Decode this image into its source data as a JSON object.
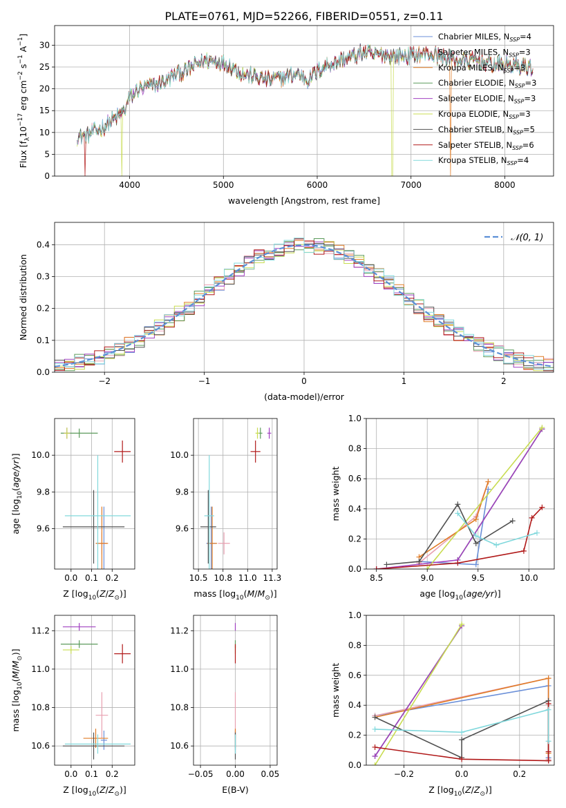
{
  "figure_title": "PLATE=0761, MJD=52266, FIBERID=0551, z=0.11",
  "colors": {
    "Chabrier MILES": "#6a8fd8",
    "Salpeter MILES": "#e8a0b0",
    "Kroupa MILES": "#e07b25",
    "Chabrier ELODIE": "#5a9a5a",
    "Salpeter ELODIE": "#a040c0",
    "Kroupa ELODIE": "#c8dc50",
    "Chabrier STELIB": "#505050",
    "Salpeter STELIB": "#b01818",
    "Kroupa STELIB": "#80d8dc",
    "gaussian": "#5b8fd6"
  },
  "chart_data": [
    {
      "id": "spectrum",
      "type": "line",
      "title": "PLATE=0761, MJD=52266, FIBERID=0551, z=0.11",
      "xlabel": "wavelength [Angstrom, rest frame]",
      "ylabel": "Flux [f_λ 10^-17 erg cm^-2 s^-1 A^-1]",
      "xlim": [
        3200,
        8520
      ],
      "ylim": [
        0,
        34.5
      ],
      "xticks": [
        4000,
        5000,
        6000,
        7000,
        8000
      ],
      "yticks": [
        0,
        5,
        10,
        15,
        20,
        25,
        30
      ],
      "legend_position": "upper right",
      "legend": [
        {
          "series": "Chabrier MILES",
          "label": "Chabrier MILES, N",
          "sub": "SSP",
          "tail": "=4"
        },
        {
          "series": "Salpeter MILES",
          "label": "Salpeter MILES, N",
          "sub": "SSP",
          "tail": "=3"
        },
        {
          "series": "Kroupa MILES",
          "label": "Kroupa MILES, N",
          "sub": "SSP",
          "tail": "=3"
        },
        {
          "series": "Chabrier ELODIE",
          "label": "Chabrier ELODIE, N",
          "sub": "SSP",
          "tail": "=3"
        },
        {
          "series": "Salpeter ELODIE",
          "label": "Salpeter ELODIE, N",
          "sub": "SSP",
          "tail": "=3"
        },
        {
          "series": "Kroupa ELODIE",
          "label": "Kroupa ELODIE, N",
          "sub": "SSP",
          "tail": "=3"
        },
        {
          "series": "Chabrier STELIB",
          "label": "Chabrier STELIB, N",
          "sub": "SSP",
          "tail": "=5"
        },
        {
          "series": "Salpeter STELIB",
          "label": "Salpeter STELIB, N",
          "sub": "SSP",
          "tail": "=6"
        },
        {
          "series": "Kroupa STELIB",
          "label": "Kroupa STELIB, N",
          "sub": "SSP",
          "tail": "=4"
        }
      ],
      "continuum": {
        "x": [
          3440,
          3550,
          3700,
          3800,
          3900,
          3950,
          4000,
          4100,
          4200,
          4300,
          4400,
          4500,
          4600,
          4700,
          4800,
          4900,
          5000,
          5100,
          5200,
          5300,
          5400,
          5500,
          5600,
          5700,
          5800,
          5900,
          6000,
          6100,
          6200,
          6300,
          6400,
          6500,
          6600,
          6700,
          6800,
          6900,
          7000,
          7100,
          7200,
          7300,
          7400,
          7500,
          7600,
          7700,
          7800,
          7900,
          8000,
          8100,
          8200,
          8300
        ],
        "y": [
          9.0,
          9.5,
          11.0,
          12.5,
          14.0,
          15.0,
          18.0,
          20.0,
          20.5,
          21.0,
          22.0,
          23.5,
          24.0,
          25.5,
          26.5,
          26.5,
          26.0,
          25.0,
          23.5,
          23.0,
          22.5,
          22.0,
          22.5,
          23.0,
          23.5,
          22.0,
          24.0,
          25.5,
          26.0,
          27.0,
          27.5,
          28.5,
          27.5,
          28.0,
          27.5,
          27.5,
          27.5,
          28.0,
          28.0,
          27.5,
          27.0,
          26.5,
          26.5,
          26.5,
          26.0,
          25.5,
          25.5,
          25.5,
          25.0,
          25.0
        ]
      },
      "dropouts": [
        {
          "series": "Salpeter STELIB",
          "x": 3525
        },
        {
          "series": "Kroupa ELODIE",
          "x": 3920
        },
        {
          "series": "Kroupa ELODIE",
          "x": 6800
        },
        {
          "series": "Kroupa MILES",
          "x": 7420
        }
      ]
    },
    {
      "id": "residuals",
      "type": "histogram",
      "xlabel": "(data-model)/error",
      "ylabel": "Normed distribution",
      "xlim": [
        -2.5,
        2.5
      ],
      "ylim": [
        0,
        0.47
      ],
      "xticks": [
        -2,
        -1,
        0,
        1,
        2
      ],
      "yticks": [
        0.0,
        0.1,
        0.2,
        0.3,
        0.4
      ],
      "bin_width": 0.1,
      "legend_position": "upper right",
      "legend": [
        {
          "series": "gaussian",
          "label": "𝒩(0, 1)"
        }
      ],
      "gaussian": {
        "mean": 0,
        "sigma": 1,
        "style": "dashed"
      }
    },
    {
      "id": "age_vs_z",
      "type": "errorbar",
      "xlabel": "Z [log10(Z/Z⊙)]",
      "ylabel": "age [log10(age/yr)]",
      "xlim": [
        -0.08,
        0.31
      ],
      "ylim": [
        9.38,
        10.2
      ],
      "xticks": [
        0.0,
        0.1,
        0.2
      ],
      "yticks": [
        9.6,
        9.8,
        10.0
      ],
      "points": [
        {
          "series": "Chabrier MILES",
          "x": 0.16,
          "xerr": 0.015,
          "y": 9.52,
          "yerr": 0.2
        },
        {
          "series": "Salpeter MILES",
          "x": 0.15,
          "xerr": 0.025,
          "y": 9.52,
          "yerr": 0.06
        },
        {
          "series": "Kroupa MILES",
          "x": 0.15,
          "xerr": 0.03,
          "y": 9.52,
          "yerr": 0.2
        },
        {
          "series": "Chabrier ELODIE",
          "x": 0.04,
          "xerr": 0.09,
          "y": 10.12,
          "yerr": 0.025
        },
        {
          "series": "Salpeter ELODIE",
          "x": -0.02,
          "xerr": 0.015,
          "y": 10.12,
          "yerr": 0.03
        },
        {
          "series": "Kroupa ELODIE",
          "x": -0.02,
          "xerr": 0.015,
          "y": 10.12,
          "yerr": 0.03
        },
        {
          "series": "Chabrier STELIB",
          "x": 0.11,
          "xerr": 0.15,
          "y": 9.61,
          "yerr": 0.2
        },
        {
          "series": "Salpeter STELIB",
          "x": 0.25,
          "xerr": 0.04,
          "y": 10.02,
          "yerr": 0.06
        },
        {
          "series": "Kroupa STELIB",
          "x": 0.13,
          "xerr": 0.16,
          "y": 9.67,
          "yerr": 0.33
        }
      ]
    },
    {
      "id": "age_vs_mass",
      "type": "errorbar",
      "xlabel": "mass [log10(M/M⊙)]",
      "xlim": [
        10.45,
        11.3
      ],
      "ylim": [
        9.38,
        10.2
      ],
      "xticks": [
        10.5,
        10.75,
        11.0,
        11.25
      ],
      "yticks": [
        9.6,
        9.8,
        10.0
      ],
      "points": [
        {
          "series": "Chabrier MILES",
          "x": 10.63,
          "xerr": 0.05,
          "y": 9.52,
          "yerr": 0.2
        },
        {
          "series": "Salpeter MILES",
          "x": 10.76,
          "xerr": 0.06,
          "y": 9.52,
          "yerr": 0.06
        },
        {
          "series": "Kroupa MILES",
          "x": 10.64,
          "xerr": 0.05,
          "y": 9.52,
          "yerr": 0.2
        },
        {
          "series": "Chabrier ELODIE",
          "x": 11.13,
          "xerr": 0.02,
          "y": 10.12,
          "yerr": 0.03
        },
        {
          "series": "Salpeter ELODIE",
          "x": 11.22,
          "xerr": 0.02,
          "y": 10.12,
          "yerr": 0.03
        },
        {
          "series": "Kroupa ELODIE",
          "x": 11.1,
          "xerr": 0.02,
          "y": 10.12,
          "yerr": 0.03
        },
        {
          "series": "Chabrier STELIB",
          "x": 10.6,
          "xerr": 0.08,
          "y": 9.61,
          "yerr": 0.2
        },
        {
          "series": "Salpeter STELIB",
          "x": 11.08,
          "xerr": 0.05,
          "y": 10.02,
          "yerr": 0.06
        },
        {
          "series": "Kroupa STELIB",
          "x": 10.61,
          "xerr": 0.05,
          "y": 9.67,
          "yerr": 0.33
        }
      ]
    },
    {
      "id": "weight_vs_age",
      "type": "line",
      "xlabel": "age [log10(age/yr)]",
      "ylabel": "mass weight",
      "xlim": [
        8.4,
        10.25
      ],
      "ylim": [
        0,
        1
      ],
      "xticks": [
        8.5,
        9.0,
        9.5,
        10.0
      ],
      "yticks": [
        0.0,
        0.2,
        0.4,
        0.6,
        0.8,
        1.0
      ],
      "series": [
        {
          "name": "Chabrier MILES",
          "x": [
            8.92,
            9.48,
            9.6
          ],
          "y": [
            0.05,
            0.03,
            0.53
          ]
        },
        {
          "name": "Salpeter MILES",
          "x": [
            8.92,
            9.48,
            9.6
          ],
          "y": [
            0.04,
            0.35,
            0.58
          ]
        },
        {
          "name": "Kroupa MILES",
          "x": [
            8.92,
            9.48,
            9.6
          ],
          "y": [
            0.08,
            0.33,
            0.58
          ]
        },
        {
          "name": "Chabrier ELODIE",
          "x": [
            9.3,
            10.13
          ],
          "y": [
            0.06,
            0.93
          ]
        },
        {
          "name": "Salpeter ELODIE",
          "x": [
            8.5,
            9.3,
            10.13
          ],
          "y": [
            0.0,
            0.06,
            0.93
          ]
        },
        {
          "name": "Kroupa ELODIE",
          "x": [
            9.0,
            10.13
          ],
          "y": [
            0.0,
            0.94
          ]
        },
        {
          "name": "Chabrier STELIB",
          "x": [
            8.6,
            8.92,
            9.3,
            9.48,
            9.84
          ],
          "y": [
            0.03,
            0.05,
            0.43,
            0.17,
            0.32
          ]
        },
        {
          "name": "Salpeter STELIB",
          "x": [
            8.5,
            9.3,
            9.95,
            10.03,
            10.13
          ],
          "y": [
            0.0,
            0.04,
            0.12,
            0.34,
            0.41
          ]
        },
        {
          "name": "Kroupa STELIB",
          "x": [
            9.3,
            9.48,
            9.68,
            10.08
          ],
          "y": [
            0.37,
            0.22,
            0.16,
            0.24
          ]
        }
      ]
    },
    {
      "id": "mass_vs_z",
      "type": "errorbar",
      "xlabel": "Z [log10(Z/Z⊙)]",
      "ylabel": "mass [log10(M/M⊙)]",
      "xlim": [
        -0.08,
        0.31
      ],
      "ylim": [
        10.5,
        11.28
      ],
      "xticks": [
        0.0,
        0.1,
        0.2
      ],
      "yticks": [
        10.6,
        10.8,
        11.0,
        11.2
      ],
      "points": [
        {
          "series": "Chabrier MILES",
          "x": 0.16,
          "xerr": 0.015,
          "y": 10.63,
          "yerr": 0.05
        },
        {
          "series": "Salpeter MILES",
          "x": 0.15,
          "xerr": 0.03,
          "y": 10.76,
          "yerr": 0.12
        },
        {
          "series": "Kroupa MILES",
          "x": 0.12,
          "xerr": 0.06,
          "y": 10.64,
          "yerr": 0.05
        },
        {
          "series": "Chabrier ELODIE",
          "x": 0.04,
          "xerr": 0.09,
          "y": 11.13,
          "yerr": 0.02
        },
        {
          "series": "Salpeter ELODIE",
          "x": 0.04,
          "xerr": 0.08,
          "y": 11.22,
          "yerr": 0.02
        },
        {
          "series": "Kroupa ELODIE",
          "x": 0.0,
          "xerr": 0.04,
          "y": 11.1,
          "yerr": 0.02
        },
        {
          "series": "Chabrier STELIB",
          "x": 0.11,
          "xerr": 0.15,
          "y": 10.6,
          "yerr": 0.07
        },
        {
          "series": "Salpeter STELIB",
          "x": 0.25,
          "xerr": 0.04,
          "y": 11.08,
          "yerr": 0.05
        },
        {
          "series": "Kroupa STELIB",
          "x": 0.13,
          "xerr": 0.16,
          "y": 10.61,
          "yerr": 0.05
        }
      ]
    },
    {
      "id": "mass_vs_ebv",
      "type": "errorbar",
      "xlabel": "E(B-V)",
      "xlim": [
        -0.06,
        0.06
      ],
      "ylim": [
        10.5,
        11.28
      ],
      "xticks": [
        -0.05,
        0.0,
        0.05
      ],
      "yticks": [
        10.6,
        10.8,
        11.0,
        11.2
      ],
      "points": [
        {
          "series": "Chabrier MILES",
          "x": 0.0,
          "xerr": 0.0,
          "y": 10.63,
          "yerr": 0.05
        },
        {
          "series": "Salpeter MILES",
          "x": 0.0,
          "xerr": 0.0,
          "y": 10.76,
          "yerr": 0.12
        },
        {
          "series": "Kroupa MILES",
          "x": 0.0,
          "xerr": 0.0,
          "y": 10.64,
          "yerr": 0.05
        },
        {
          "series": "Chabrier ELODIE",
          "x": 0.0,
          "xerr": 0.0,
          "y": 11.13,
          "yerr": 0.02
        },
        {
          "series": "Salpeter ELODIE",
          "x": 0.0,
          "xerr": 0.0,
          "y": 11.22,
          "yerr": 0.02
        },
        {
          "series": "Kroupa ELODIE",
          "x": 0.0,
          "xerr": 0.0,
          "y": 11.1,
          "yerr": 0.02
        },
        {
          "series": "Chabrier STELIB",
          "x": 0.0,
          "xerr": 0.0,
          "y": 10.6,
          "yerr": 0.07
        },
        {
          "series": "Salpeter STELIB",
          "x": 0.0,
          "xerr": 0.0,
          "y": 11.08,
          "yerr": 0.05
        },
        {
          "series": "Kroupa STELIB",
          "x": 0.0,
          "xerr": 0.0,
          "y": 10.61,
          "yerr": 0.05
        }
      ]
    },
    {
      "id": "weight_vs_z",
      "type": "line",
      "xlabel": "Z [log10(Z/Z⊙)]",
      "ylabel": "mass weight",
      "xlim": [
        -0.33,
        0.32
      ],
      "ylim": [
        0,
        1
      ],
      "xticks": [
        -0.2,
        0.0,
        0.2
      ],
      "yticks": [
        0.0,
        0.2,
        0.4,
        0.6,
        0.8,
        1.0
      ],
      "series": [
        {
          "name": "Chabrier MILES",
          "x": [
            -0.3,
            0.3,
            0.3
          ],
          "y": [
            0.33,
            0.53,
            0.05
          ]
        },
        {
          "name": "Salpeter MILES",
          "x": [
            -0.3,
            0.3,
            0.3
          ],
          "y": [
            0.33,
            0.58,
            0.04
          ]
        },
        {
          "name": "Kroupa MILES",
          "x": [
            -0.3,
            0.3,
            0.3
          ],
          "y": [
            0.32,
            0.58,
            0.08
          ]
        },
        {
          "name": "Chabrier ELODIE",
          "x": [
            -0.3,
            0.0
          ],
          "y": [
            0.06,
            0.93
          ]
        },
        {
          "name": "Salpeter ELODIE",
          "x": [
            -0.3,
            0.0
          ],
          "y": [
            0.06,
            0.93
          ]
        },
        {
          "name": "Kroupa ELODIE",
          "x": [
            -0.3,
            0.0
          ],
          "y": [
            0.0,
            0.94
          ]
        },
        {
          "name": "Chabrier STELIB",
          "x": [
            -0.3,
            0.0,
            0.0,
            0.3,
            0.3
          ],
          "y": [
            0.32,
            0.05,
            0.17,
            0.43,
            0.03
          ]
        },
        {
          "name": "Salpeter STELIB",
          "x": [
            -0.3,
            0.0,
            0.3,
            0.3,
            0.3
          ],
          "y": [
            0.12,
            0.04,
            0.03,
            0.41,
            0.09
          ]
        },
        {
          "name": "Kroupa STELIB",
          "x": [
            -0.3,
            0.0,
            0.3,
            0.3
          ],
          "y": [
            0.24,
            0.22,
            0.37,
            0.16
          ]
        }
      ]
    }
  ]
}
